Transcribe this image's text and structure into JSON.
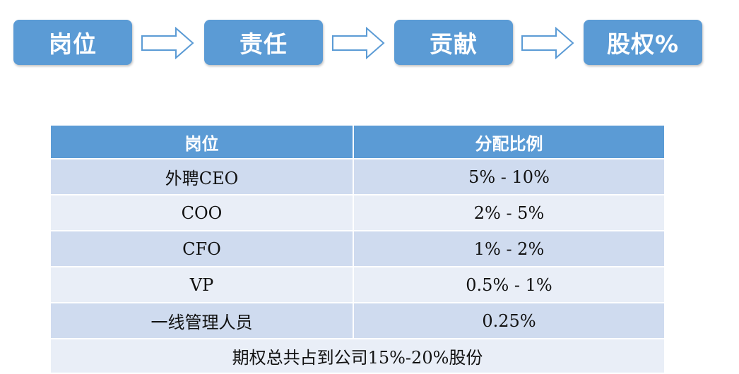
{
  "flow": {
    "steps": [
      "岗位",
      "责任",
      "贡献",
      "股权%"
    ],
    "arrow_icon": "hollow-right-arrow",
    "box_color": "#5b9bd5"
  },
  "table": {
    "headers": [
      "岗位",
      "分配比例"
    ],
    "rows": [
      {
        "position": "外聘CEO",
        "ratio": "5% - 10%"
      },
      {
        "position": "COO",
        "ratio": "2% - 5%"
      },
      {
        "position": "CFO",
        "ratio": "1% - 2%"
      },
      {
        "position": "VP",
        "ratio": "0.5% - 1%"
      },
      {
        "position": "一线管理人员",
        "ratio": "0.25%"
      }
    ],
    "footer": "期权总共占到公司15%-20%股份",
    "header_color": "#5b9bd5",
    "row_color_light": "#e9eef7",
    "row_color_dark": "#cfdbef"
  }
}
